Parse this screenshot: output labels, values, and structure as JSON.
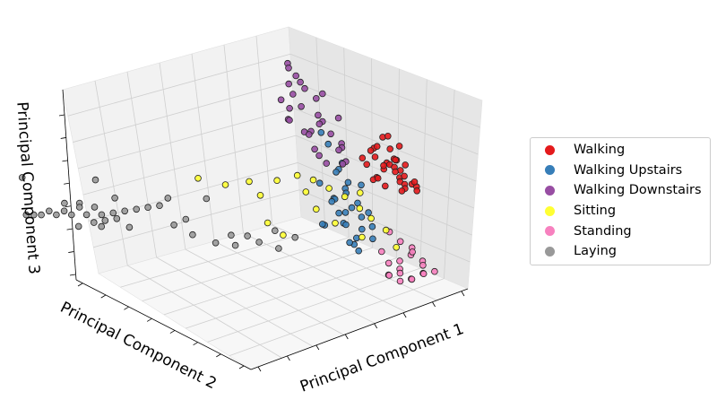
{
  "chart_data": {
    "type": "scatter",
    "projection": "3d",
    "title": "",
    "xlabel": "Principal Component 1",
    "ylabel": "Principal Component 2",
    "zlabel": "Principal Component 3",
    "grid": true,
    "legend_position": "right",
    "series": [
      {
        "name": "Walking",
        "color": "#e41a1c",
        "points": [
          [
            0.62,
            0.05,
            0.8
          ],
          [
            0.66,
            0.08,
            0.76
          ],
          [
            0.7,
            0.1,
            0.72
          ],
          [
            0.6,
            0.12,
            0.84
          ],
          [
            0.68,
            0.04,
            0.68
          ],
          [
            0.72,
            0.06,
            0.64
          ],
          [
            0.64,
            0.14,
            0.78
          ],
          [
            0.74,
            0.08,
            0.6
          ],
          [
            0.58,
            0.08,
            0.88
          ],
          [
            0.7,
            0.16,
            0.7
          ],
          [
            0.66,
            0.02,
            0.72
          ],
          [
            0.76,
            0.12,
            0.56
          ],
          [
            0.62,
            0.16,
            0.74
          ],
          [
            0.68,
            0.12,
            0.62
          ],
          [
            0.72,
            0.02,
            0.66
          ],
          [
            0.64,
            0.06,
            0.86
          ],
          [
            0.78,
            0.06,
            0.58
          ],
          [
            0.6,
            0.04,
            0.78
          ],
          [
            0.7,
            0.04,
            0.76
          ],
          [
            0.74,
            0.14,
            0.66
          ],
          [
            0.66,
            0.1,
            0.9
          ],
          [
            0.62,
            0.1,
            0.7
          ],
          [
            0.68,
            0.18,
            0.8
          ],
          [
            0.76,
            0.04,
            0.62
          ],
          [
            0.58,
            0.14,
            0.8
          ],
          [
            0.72,
            0.12,
            0.74
          ],
          [
            0.64,
            0.02,
            0.82
          ],
          [
            0.7,
            0.08,
            0.84
          ],
          [
            0.8,
            0.1,
            0.6
          ],
          [
            0.66,
            0.14,
            0.66
          ],
          [
            0.61,
            0.07,
            0.93
          ],
          [
            0.69,
            0.03,
            0.71
          ],
          [
            0.73,
            0.1,
            0.69
          ],
          [
            0.63,
            0.13,
            0.67
          ],
          [
            0.67,
            0.07,
            0.79
          ]
        ]
      },
      {
        "name": "Walking Upstairs",
        "color": "#377eb8",
        "points": [
          [
            0.56,
            0.2,
            0.62
          ],
          [
            0.6,
            0.24,
            0.56
          ],
          [
            0.64,
            0.22,
            0.5
          ],
          [
            0.58,
            0.28,
            0.66
          ],
          [
            0.66,
            0.18,
            0.46
          ],
          [
            0.62,
            0.26,
            0.44
          ],
          [
            0.54,
            0.22,
            0.72
          ],
          [
            0.68,
            0.24,
            0.4
          ],
          [
            0.6,
            0.3,
            0.5
          ],
          [
            0.64,
            0.28,
            0.58
          ],
          [
            0.7,
            0.2,
            0.36
          ],
          [
            0.56,
            0.26,
            0.54
          ],
          [
            0.66,
            0.3,
            0.34
          ],
          [
            0.52,
            0.18,
            0.78
          ],
          [
            0.62,
            0.2,
            0.3
          ],
          [
            0.58,
            0.22,
            0.42
          ],
          [
            0.5,
            0.24,
            0.86
          ],
          [
            0.68,
            0.26,
            0.28
          ],
          [
            0.64,
            0.32,
            0.4
          ],
          [
            0.6,
            0.16,
            0.64
          ],
          [
            0.72,
            0.28,
            0.3
          ],
          [
            0.56,
            0.3,
            0.38
          ],
          [
            0.48,
            0.26,
            0.92
          ],
          [
            0.7,
            0.32,
            0.22
          ],
          [
            0.62,
            0.34,
            0.46
          ],
          [
            0.66,
            0.22,
            0.24
          ],
          [
            0.54,
            0.32,
            0.6
          ],
          [
            0.58,
            0.18,
            0.52
          ],
          [
            0.74,
            0.24,
            0.26
          ],
          [
            0.6,
            0.36,
            0.34
          ]
        ]
      },
      {
        "name": "Walking Downstairs",
        "color": "#984ea3",
        "points": [
          [
            0.4,
            0.3,
            1.2
          ],
          [
            0.44,
            0.32,
            1.14
          ],
          [
            0.36,
            0.28,
            1.26
          ],
          [
            0.48,
            0.3,
            1.08
          ],
          [
            0.46,
            0.26,
            1.02
          ],
          [
            0.5,
            0.28,
            0.96
          ],
          [
            0.42,
            0.36,
            1.1
          ],
          [
            0.52,
            0.32,
            0.92
          ],
          [
            0.54,
            0.24,
            0.98
          ],
          [
            0.48,
            0.38,
            1.0
          ],
          [
            0.56,
            0.3,
            0.86
          ],
          [
            0.44,
            0.4,
            0.94
          ],
          [
            0.58,
            0.26,
            0.82
          ],
          [
            0.5,
            0.34,
            0.88
          ],
          [
            0.46,
            0.42,
            0.98
          ],
          [
            0.6,
            0.28,
            0.78
          ],
          [
            0.52,
            0.4,
            0.84
          ],
          [
            0.38,
            0.34,
            1.18
          ],
          [
            0.54,
            0.36,
            0.76
          ],
          [
            0.62,
            0.32,
            0.74
          ],
          [
            0.56,
            0.42,
            0.8
          ],
          [
            0.4,
            0.4,
            1.06
          ],
          [
            0.58,
            0.38,
            0.7
          ],
          [
            0.34,
            0.3,
            1.3
          ],
          [
            0.64,
            0.3,
            0.68
          ],
          [
            0.48,
            0.44,
            0.9
          ],
          [
            0.3,
            0.26,
            1.36
          ],
          [
            0.6,
            0.36,
            0.66
          ],
          [
            0.44,
            0.22,
            1.16
          ],
          [
            0.66,
            0.34,
            0.64
          ]
        ]
      },
      {
        "name": "Sitting",
        "color": "#ffff33",
        "points": [
          [
            0.5,
            0.4,
            0.62
          ],
          [
            0.56,
            0.38,
            0.58
          ],
          [
            0.62,
            0.36,
            0.52
          ],
          [
            0.68,
            0.34,
            0.46
          ],
          [
            0.72,
            0.3,
            0.4
          ],
          [
            0.76,
            0.28,
            0.34
          ],
          [
            0.8,
            0.24,
            0.28
          ],
          [
            0.44,
            0.44,
            0.6
          ],
          [
            0.36,
            0.5,
            0.6
          ],
          [
            0.3,
            0.56,
            0.58
          ],
          [
            0.22,
            0.62,
            0.62
          ],
          [
            0.6,
            0.4,
            0.4
          ],
          [
            0.66,
            0.36,
            0.32
          ],
          [
            0.74,
            0.3,
            0.24
          ],
          [
            0.52,
            0.48,
            0.26
          ],
          [
            0.46,
            0.5,
            0.34
          ],
          [
            0.82,
            0.2,
            0.2
          ],
          [
            0.58,
            0.44,
            0.48
          ],
          [
            0.7,
            0.28,
            0.5
          ],
          [
            0.4,
            0.48,
            0.52
          ]
        ]
      },
      {
        "name": "Standing",
        "color": "#f781bf",
        "points": [
          [
            0.86,
            0.16,
            0.2
          ],
          [
            0.88,
            0.18,
            0.16
          ],
          [
            0.84,
            0.2,
            0.12
          ],
          [
            0.9,
            0.14,
            0.1
          ],
          [
            0.86,
            0.22,
            0.06
          ],
          [
            0.92,
            0.16,
            0.04
          ],
          [
            0.88,
            0.24,
            0.02
          ],
          [
            0.82,
            0.18,
            0.24
          ],
          [
            0.9,
            0.2,
            0.0
          ],
          [
            0.84,
            0.26,
            0.08
          ],
          [
            0.94,
            0.12,
            0.06
          ],
          [
            0.86,
            0.28,
            0.0
          ],
          [
            0.92,
            0.22,
            -0.02
          ],
          [
            0.8,
            0.22,
            0.28
          ],
          [
            0.88,
            0.12,
            0.14
          ],
          [
            0.9,
            0.26,
            -0.04
          ],
          [
            0.84,
            0.14,
            0.18
          ],
          [
            0.94,
            0.18,
            0.02
          ],
          [
            0.82,
            0.28,
            0.14
          ],
          [
            0.88,
            0.3,
            -0.02
          ]
        ]
      },
      {
        "name": "Laying",
        "color": "#999999",
        "points": [
          [
            0.1,
            1.0,
            0.3
          ],
          [
            0.08,
            1.06,
            0.28
          ],
          [
            0.06,
            1.12,
            0.26
          ],
          [
            0.04,
            1.18,
            0.24
          ],
          [
            0.02,
            1.24,
            0.22
          ],
          [
            0.0,
            1.3,
            0.2
          ],
          [
            0.12,
            0.96,
            0.32
          ],
          [
            0.14,
            0.92,
            0.34
          ],
          [
            0.09,
            1.03,
            0.33
          ],
          [
            0.07,
            1.09,
            0.31
          ],
          [
            0.05,
            1.15,
            0.27
          ],
          [
            0.03,
            1.21,
            0.25
          ],
          [
            0.11,
            0.99,
            0.27
          ],
          [
            0.13,
            0.95,
            0.29
          ],
          [
            0.16,
            0.88,
            0.36
          ],
          [
            0.01,
            1.27,
            0.21
          ],
          [
            0.1,
            1.04,
            0.24
          ],
          [
            0.06,
            1.08,
            0.34
          ],
          [
            0.18,
            0.84,
            0.38
          ],
          [
            0.2,
            0.8,
            0.4
          ],
          [
            0.24,
            0.76,
            0.3
          ],
          [
            0.28,
            0.7,
            0.26
          ],
          [
            0.34,
            0.64,
            0.22
          ],
          [
            0.4,
            0.6,
            0.2
          ],
          [
            0.46,
            0.54,
            0.22
          ],
          [
            0.52,
            0.5,
            0.18
          ],
          [
            0.22,
            0.78,
            0.44
          ],
          [
            0.06,
            1.0,
            0.5
          ],
          [
            0.02,
            1.36,
            0.36
          ],
          [
            0.3,
            0.66,
            0.46
          ],
          [
            0.08,
            1.1,
            0.2
          ],
          [
            0.12,
            1.02,
            0.22
          ],
          [
            0.04,
            1.14,
            0.32
          ],
          [
            0.15,
            0.9,
            0.26
          ],
          [
            0.56,
            0.46,
            0.24
          ],
          [
            0.36,
            0.58,
            0.28
          ],
          [
            0.42,
            0.56,
            0.26
          ],
          [
            0.26,
            0.72,
            0.34
          ],
          [
            0.48,
            0.48,
            0.3
          ],
          [
            0.14,
            0.98,
            0.38
          ]
        ]
      }
    ]
  }
}
